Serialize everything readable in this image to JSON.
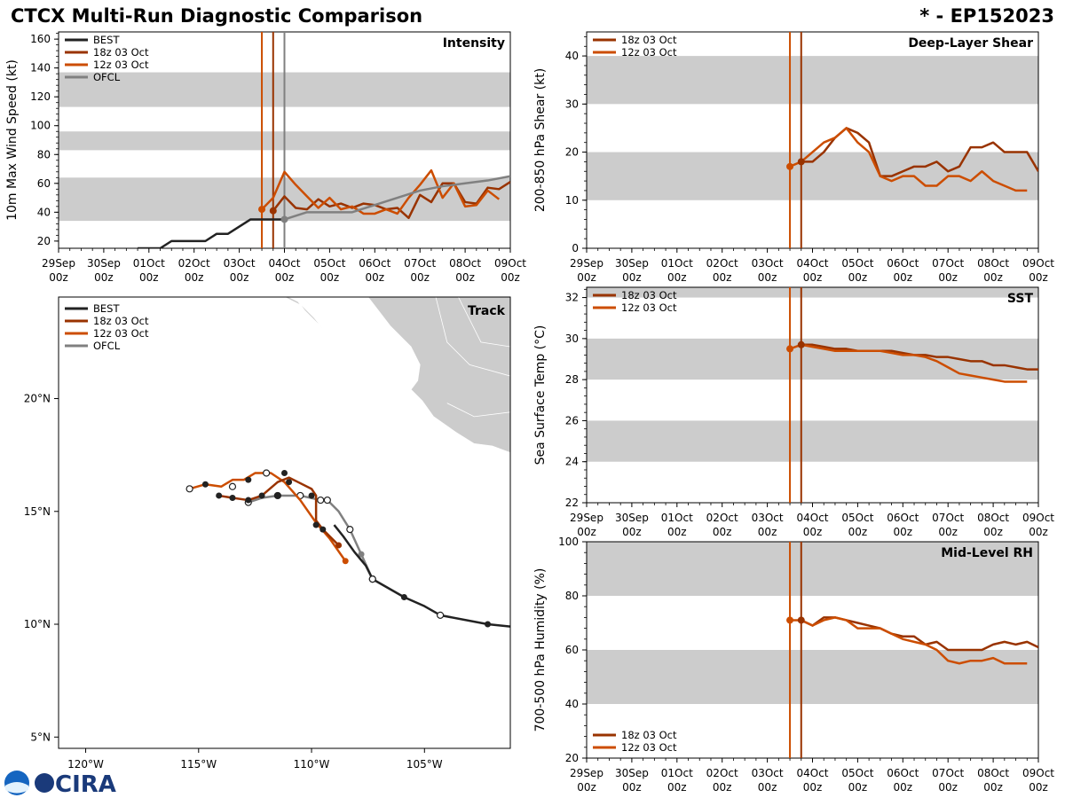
{
  "header": {
    "title": "CTCX Multi-Run Diagnostic Comparison",
    "storm_id": "* - EP152023"
  },
  "logo": {
    "text": "CIRA"
  },
  "colors": {
    "best": "#222222",
    "run18": "#993300",
    "run12": "#cc4d00",
    "ofcl": "#808080",
    "band": "#cccccc"
  },
  "time_axis": {
    "ticks": [
      {
        "day": "29Sep",
        "hour": "00z"
      },
      {
        "day": "30Sep",
        "hour": "00z"
      },
      {
        "day": "01Oct",
        "hour": "00z"
      },
      {
        "day": "02Oct",
        "hour": "00z"
      },
      {
        "day": "03Oct",
        "hour": "00z"
      },
      {
        "day": "04Oct",
        "hour": "00z"
      },
      {
        "day": "05Oct",
        "hour": "00z"
      },
      {
        "day": "06Oct",
        "hour": "00z"
      },
      {
        "day": "07Oct",
        "hour": "00z"
      },
      {
        "day": "08Oct",
        "hour": "00z"
      },
      {
        "day": "09Oct",
        "hour": "00z"
      }
    ],
    "range_hours": [
      0,
      240
    ]
  },
  "chart_data": [
    {
      "id": "intensity",
      "type": "line",
      "title": "Intensity",
      "ylabel": "10m Max Wind Speed (kt)",
      "xlabel": "",
      "ylim": [
        15,
        165
      ],
      "yticks": [
        20,
        40,
        60,
        80,
        100,
        120,
        140,
        160
      ],
      "bands": [
        [
          34,
          64
        ],
        [
          83,
          96
        ],
        [
          113,
          137
        ]
      ],
      "vlines": [
        {
          "x": 108,
          "series": "12z 03 Oct"
        },
        {
          "x": 114,
          "series": "18z 03 Oct"
        },
        {
          "x": 120,
          "series": "OFCL"
        }
      ],
      "legend": [
        "BEST",
        "18z 03 Oct",
        "12z 03 Oct",
        "OFCL"
      ],
      "series": [
        {
          "name": "BEST",
          "key": "best",
          "x": [
            42,
            48,
            54,
            60,
            66,
            72,
            78,
            84,
            90,
            96,
            102,
            108,
            114,
            120
          ],
          "y": [
            15,
            15,
            15,
            20,
            20,
            20,
            20,
            25,
            25,
            30,
            35,
            35,
            35,
            35
          ]
        },
        {
          "name": "18z 03 Oct",
          "key": "run18",
          "marker": true,
          "x": [
            114,
            120,
            126,
            132,
            138,
            144,
            150,
            156,
            162,
            168,
            174,
            180,
            186,
            192,
            198,
            204,
            210,
            216,
            222,
            228,
            234,
            240
          ],
          "y": [
            41,
            51,
            43,
            42,
            49,
            44,
            46,
            43,
            46,
            45,
            42,
            43,
            36,
            52,
            47,
            60,
            60,
            47,
            46,
            57,
            56,
            61
          ]
        },
        {
          "name": "12z 03 Oct",
          "key": "run12",
          "marker": true,
          "x": [
            108,
            114,
            120,
            126,
            132,
            138,
            144,
            150,
            156,
            162,
            168,
            174,
            180,
            186,
            192,
            198,
            204,
            210,
            216,
            222,
            228,
            234
          ],
          "y": [
            42,
            50,
            68,
            59,
            51,
            43,
            50,
            42,
            44,
            39,
            39,
            42,
            39,
            50,
            59,
            69,
            50,
            60,
            44,
            45,
            55,
            49
          ]
        },
        {
          "name": "OFCL",
          "key": "ofcl",
          "marker": true,
          "markerIndex": 0,
          "x": [
            120,
            132,
            144,
            156,
            168,
            180,
            192,
            204,
            216,
            228,
            240
          ],
          "y": [
            35,
            40,
            40,
            40,
            45,
            50,
            55,
            58,
            60,
            62,
            65
          ]
        }
      ]
    },
    {
      "id": "shear",
      "type": "line",
      "title": "Deep-Layer Shear",
      "ylabel": "200-850 hPa Shear (kt)",
      "xlabel": "",
      "ylim": [
        0,
        45
      ],
      "yticks": [
        0,
        10,
        20,
        30,
        40
      ],
      "bands": [
        [
          10,
          20
        ],
        [
          30,
          40
        ]
      ],
      "vlines": [
        {
          "x": 108,
          "series": "12z 03 Oct"
        },
        {
          "x": 114,
          "series": "18z 03 Oct"
        }
      ],
      "legend": [
        "18z 03 Oct",
        "12z 03 Oct"
      ],
      "series": [
        {
          "name": "18z 03 Oct",
          "key": "run18",
          "marker": true,
          "x": [
            114,
            120,
            126,
            132,
            138,
            144,
            150,
            156,
            162,
            168,
            174,
            180,
            186,
            192,
            198,
            204,
            210,
            216,
            222,
            228,
            234,
            240
          ],
          "y": [
            18,
            18,
            20,
            23,
            25,
            24,
            22,
            15,
            15,
            16,
            17,
            17,
            18,
            16,
            17,
            21,
            21,
            22,
            20,
            20,
            20,
            16
          ]
        },
        {
          "name": "12z 03 Oct",
          "key": "run12",
          "marker": true,
          "x": [
            108,
            114,
            120,
            126,
            132,
            138,
            144,
            150,
            156,
            162,
            168,
            174,
            180,
            186,
            192,
            198,
            204,
            210,
            216,
            222,
            228,
            234
          ],
          "y": [
            17,
            18,
            20,
            22,
            23,
            25,
            22,
            20,
            15,
            14,
            15,
            15,
            13,
            13,
            15,
            15,
            14,
            16,
            14,
            13,
            12,
            12
          ]
        }
      ]
    },
    {
      "id": "sst",
      "type": "line",
      "title": "SST",
      "ylabel": "Sea Surface Temp (°C)",
      "xlabel": "",
      "ylim": [
        22,
        32.5
      ],
      "yticks": [
        22,
        24,
        26,
        28,
        30,
        32
      ],
      "bands": [
        [
          24,
          26
        ],
        [
          28,
          30
        ],
        [
          32,
          33
        ]
      ],
      "vlines": [
        {
          "x": 108,
          "series": "12z 03 Oct"
        },
        {
          "x": 114,
          "series": "18z 03 Oct"
        }
      ],
      "legend": [
        "18z 03 Oct",
        "12z 03 Oct"
      ],
      "series": [
        {
          "name": "18z 03 Oct",
          "key": "run18",
          "marker": true,
          "x": [
            114,
            120,
            126,
            132,
            138,
            144,
            150,
            156,
            162,
            168,
            174,
            180,
            186,
            192,
            198,
            204,
            210,
            216,
            222,
            228,
            234,
            240
          ],
          "y": [
            29.7,
            29.7,
            29.6,
            29.5,
            29.5,
            29.4,
            29.4,
            29.4,
            29.4,
            29.3,
            29.2,
            29.2,
            29.1,
            29.1,
            29.0,
            28.9,
            28.9,
            28.7,
            28.7,
            28.6,
            28.5,
            28.5
          ]
        },
        {
          "name": "12z 03 Oct",
          "key": "run12",
          "marker": true,
          "x": [
            108,
            114,
            120,
            126,
            132,
            138,
            144,
            150,
            156,
            162,
            168,
            174,
            180,
            186,
            192,
            198,
            204,
            210,
            216,
            222,
            228,
            234
          ],
          "y": [
            29.5,
            29.7,
            29.6,
            29.5,
            29.4,
            29.4,
            29.4,
            29.4,
            29.4,
            29.3,
            29.2,
            29.2,
            29.1,
            28.9,
            28.6,
            28.3,
            28.2,
            28.1,
            28.0,
            27.9,
            27.9,
            27.9
          ]
        }
      ]
    },
    {
      "id": "rh",
      "type": "line",
      "title": "Mid-Level RH",
      "ylabel": "700-500 hPa Humidity (%)",
      "xlabel": "",
      "ylim": [
        20,
        100
      ],
      "yticks": [
        20,
        40,
        60,
        80,
        100
      ],
      "bands": [
        [
          40,
          60
        ],
        [
          80,
          100
        ]
      ],
      "vlines": [
        {
          "x": 108,
          "series": "12z 03 Oct"
        },
        {
          "x": 114,
          "series": "18z 03 Oct"
        }
      ],
      "legend": [
        "18z 03 Oct",
        "12z 03 Oct"
      ],
      "series": [
        {
          "name": "18z 03 Oct",
          "key": "run18",
          "marker": true,
          "x": [
            114,
            120,
            126,
            132,
            138,
            144,
            150,
            156,
            162,
            168,
            174,
            180,
            186,
            192,
            198,
            204,
            210,
            216,
            222,
            228,
            234,
            240
          ],
          "y": [
            71,
            69,
            72,
            72,
            71,
            70,
            69,
            68,
            66,
            65,
            65,
            62,
            63,
            60,
            60,
            60,
            60,
            62,
            63,
            62,
            63,
            61
          ]
        },
        {
          "name": "12z 03 Oct",
          "key": "run12",
          "marker": true,
          "x": [
            108,
            114,
            120,
            126,
            132,
            138,
            144,
            150,
            156,
            162,
            168,
            174,
            180,
            186,
            192,
            198,
            204,
            210,
            216,
            222,
            228,
            234
          ],
          "y": [
            71,
            71,
            69,
            71,
            72,
            71,
            68,
            68,
            68,
            66,
            64,
            63,
            62,
            60,
            56,
            55,
            56,
            56,
            57,
            55,
            55,
            55
          ]
        }
      ]
    },
    {
      "id": "track",
      "type": "line",
      "title": "Track",
      "xlabel": "",
      "ylabel": "",
      "xlim": [
        -121.2,
        -101.2
      ],
      "ylim": [
        4.5,
        24.5
      ],
      "xticks": [
        {
          "v": -120,
          "label": "120°W"
        },
        {
          "v": -115,
          "label": "115°W"
        },
        {
          "v": -110,
          "label": "110°W"
        },
        {
          "v": -105,
          "label": "105°W"
        }
      ],
      "yticks": [
        {
          "v": 5,
          "label": "5°N"
        },
        {
          "v": 10,
          "label": "10°N"
        },
        {
          "v": 15,
          "label": "15°N"
        },
        {
          "v": 20,
          "label": "20°N"
        }
      ],
      "legend": [
        "BEST",
        "18z 03 Oct",
        "12z 03 Oct",
        "OFCL"
      ],
      "series": [
        {
          "name": "BEST",
          "key": "best",
          "lon": [
            -101.2,
            -102.2,
            -104.3,
            -105.0,
            -105.9,
            -107.3,
            -107.6,
            -108.1,
            -108.6,
            -109.0
          ],
          "lat": [
            9.9,
            10.0,
            10.4,
            10.8,
            11.2,
            12.0,
            12.6,
            13.2,
            13.9,
            14.4
          ],
          "dots": [
            [
              -102.2,
              10.0,
              "filled"
            ],
            [
              -104.3,
              10.4,
              "open"
            ],
            [
              -105.9,
              11.2,
              "filled"
            ],
            [
              -107.3,
              12.0,
              "open"
            ]
          ]
        },
        {
          "name": "18z 03 Oct",
          "key": "run18",
          "lon": [
            -108.8,
            -109.5,
            -109.8,
            -109.8,
            -110.0,
            -110.6,
            -111.0,
            -111.5,
            -112.2,
            -112.8,
            -113.5,
            -114.1
          ],
          "lat": [
            13.5,
            14.2,
            14.6,
            15.7,
            16.0,
            16.3,
            16.5,
            16.3,
            15.7,
            15.5,
            15.6,
            15.7
          ],
          "dots": [
            [
              -108.8,
              13.5,
              "filled"
            ],
            [
              -109.5,
              14.2,
              "filled"
            ],
            [
              -109.8,
              14.4,
              "filled"
            ],
            [
              -110.0,
              15.7,
              "filled"
            ],
            [
              -111.0,
              16.3,
              "filled"
            ],
            [
              -111.5,
              15.7,
              "filled"
            ],
            [
              -112.2,
              15.7,
              "filled"
            ],
            [
              -112.8,
              15.5,
              "filled"
            ],
            [
              -113.5,
              15.6,
              "filled"
            ],
            [
              -114.1,
              15.7,
              "filled"
            ]
          ]
        },
        {
          "name": "12z 03 Oct",
          "key": "run12",
          "lon": [
            -108.5,
            -109.2,
            -109.8,
            -110.5,
            -111.2,
            -111.8,
            -112.5,
            -113.0,
            -113.5,
            -114.0,
            -114.7,
            -115.4
          ],
          "lat": [
            12.8,
            13.8,
            14.5,
            15.5,
            16.3,
            16.7,
            16.7,
            16.4,
            16.4,
            16.1,
            16.2,
            16.0
          ],
          "dots": [
            [
              -108.5,
              12.8,
              "filled"
            ],
            [
              -111.2,
              16.7,
              "filled"
            ],
            [
              -112.8,
              16.4,
              "filled"
            ],
            [
              -114.7,
              16.2,
              "filled"
            ],
            [
              -113.5,
              16.1,
              "open"
            ],
            [
              -115.4,
              16.0,
              "open"
            ],
            [
              -112.0,
              16.7,
              "open"
            ]
          ]
        },
        {
          "name": "OFCL",
          "key": "ofcl",
          "lon": [
            -107.3,
            -107.8,
            -108.3,
            -108.8,
            -109.3,
            -109.6,
            -110.5,
            -111.5,
            -112.2,
            -112.8
          ],
          "lat": [
            12.0,
            13.1,
            14.2,
            15.0,
            15.5,
            15.5,
            15.7,
            15.7,
            15.6,
            15.4
          ],
          "dots": [
            [
              -107.3,
              12.0,
              "open"
            ],
            [
              -107.8,
              13.1,
              "filled"
            ],
            [
              -108.3,
              14.2,
              "open"
            ],
            [
              -109.3,
              15.5,
              "open"
            ],
            [
              -109.6,
              15.5,
              "open"
            ],
            [
              -110.5,
              15.7,
              "open"
            ],
            [
              -111.5,
              15.7,
              "open"
            ],
            [
              -112.8,
              15.4,
              "open"
            ]
          ]
        }
      ],
      "land": [
        [
          [
            -111.2,
            24.5
          ],
          [
            -110.4,
            24.1
          ],
          [
            -109.9,
            23.6
          ],
          [
            -109.5,
            23.1
          ],
          [
            -109.7,
            23.3
          ],
          [
            -110.3,
            23.9
          ],
          [
            -110.6,
            24.3
          ],
          [
            -111.0,
            24.5
          ]
        ],
        [
          [
            -107.5,
            24.5
          ],
          [
            -106.5,
            23.2
          ],
          [
            -105.6,
            22.3
          ],
          [
            -105.2,
            21.5
          ],
          [
            -105.3,
            20.8
          ],
          [
            -105.6,
            20.4
          ],
          [
            -105.1,
            19.9
          ],
          [
            -104.6,
            19.2
          ],
          [
            -103.6,
            18.5
          ],
          [
            -102.8,
            18.0
          ],
          [
            -102.0,
            17.9
          ],
          [
            -101.2,
            17.6
          ],
          [
            -101.2,
            24.5
          ]
        ]
      ]
    }
  ]
}
